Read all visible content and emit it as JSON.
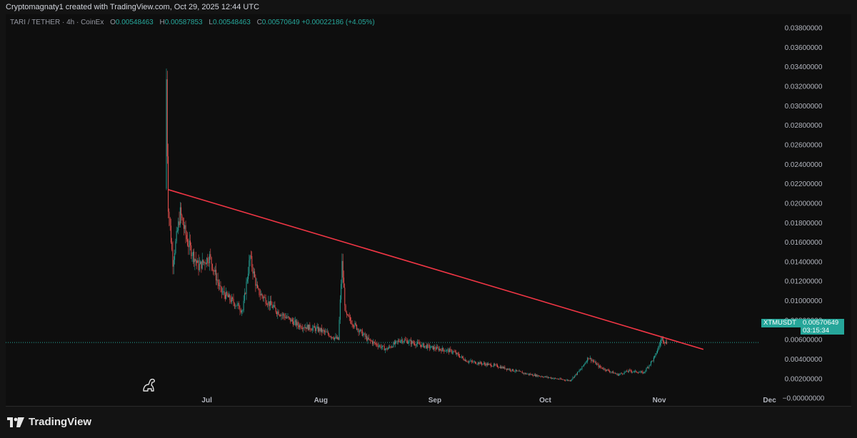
{
  "caption": "Cryptomagnaty1 created with TradingView.com, Oct 29, 2025 12:44 UTC",
  "legend": {
    "symbol": "TARI / TETHER · 4h · CoinEx",
    "open_label": "O",
    "open": "0.00548463",
    "high_label": "H",
    "high": "0.00587853",
    "low_label": "L",
    "low": "0.00548463",
    "close_label": "C",
    "close": "0.00570649",
    "change": "+0.00022186 (+4.05%)"
  },
  "price_badge": {
    "ticker": "XTMUSDT",
    "price": "0.00570649",
    "countdown": "03:15:34"
  },
  "branding": {
    "name": "TradingView"
  },
  "colors": {
    "up": "#26a69a",
    "down": "#ef5350",
    "trendline": "#f23645",
    "background": "#0e0e0e"
  },
  "icons": [
    "tradingview-logo-icon",
    "dino-icon"
  ],
  "chart_data": {
    "type": "candlestick",
    "y_axis_ticks": [
      "0.03800000",
      "0.03600000",
      "0.03400000",
      "0.03200000",
      "0.03000000",
      "0.02800000",
      "0.02600000",
      "0.02400000",
      "0.02200000",
      "0.02000000",
      "0.01800000",
      "0.01600000",
      "0.01400000",
      "0.01200000",
      "0.01000000",
      "0.00800000",
      "0.00600000",
      "0.00400000",
      "0.00200000",
      "−0.00000000"
    ],
    "x_axis_ticks": [
      "Jul",
      "Aug",
      "Sep",
      "Oct",
      "Nov",
      "Dec"
    ],
    "ylim": [
      -0.0008,
      0.0394
    ],
    "series_path": [
      {
        "day": 0,
        "price": 0.0215
      },
      {
        "day": 0.3,
        "price": 0.035
      },
      {
        "day": 0.6,
        "price": 0.0205
      },
      {
        "day": 2,
        "price": 0.014
      },
      {
        "day": 4,
        "price": 0.019
      },
      {
        "day": 6,
        "price": 0.016
      },
      {
        "day": 9,
        "price": 0.0135
      },
      {
        "day": 12,
        "price": 0.0145
      },
      {
        "day": 15,
        "price": 0.011
      },
      {
        "day": 18,
        "price": 0.01
      },
      {
        "day": 21,
        "price": 0.009
      },
      {
        "day": 23,
        "price": 0.0145
      },
      {
        "day": 25,
        "price": 0.011
      },
      {
        "day": 30,
        "price": 0.009
      },
      {
        "day": 36,
        "price": 0.0075
      },
      {
        "day": 42,
        "price": 0.007
      },
      {
        "day": 47,
        "price": 0.006
      },
      {
        "day": 48,
        "price": 0.0138
      },
      {
        "day": 49,
        "price": 0.0085
      },
      {
        "day": 55,
        "price": 0.006
      },
      {
        "day": 60,
        "price": 0.005
      },
      {
        "day": 64,
        "price": 0.006
      },
      {
        "day": 72,
        "price": 0.0052
      },
      {
        "day": 78,
        "price": 0.0048
      },
      {
        "day": 82,
        "price": 0.0038
      },
      {
        "day": 90,
        "price": 0.0033
      },
      {
        "day": 98,
        "price": 0.0025
      },
      {
        "day": 106,
        "price": 0.002
      },
      {
        "day": 110,
        "price": 0.0018
      },
      {
        "day": 113,
        "price": 0.003
      },
      {
        "day": 115,
        "price": 0.0042
      },
      {
        "day": 118,
        "price": 0.0032
      },
      {
        "day": 123,
        "price": 0.0024
      },
      {
        "day": 126,
        "price": 0.0028
      },
      {
        "day": 130,
        "price": 0.0026
      },
      {
        "day": 133,
        "price": 0.0042
      },
      {
        "day": 135,
        "price": 0.0062
      },
      {
        "day": 136,
        "price": 0.0057
      }
    ],
    "trendline": [
      {
        "day": 0.5,
        "price": 0.0214
      },
      {
        "day": 146,
        "price": 0.005
      }
    ],
    "last_price": 0.00570649,
    "grid": false
  }
}
